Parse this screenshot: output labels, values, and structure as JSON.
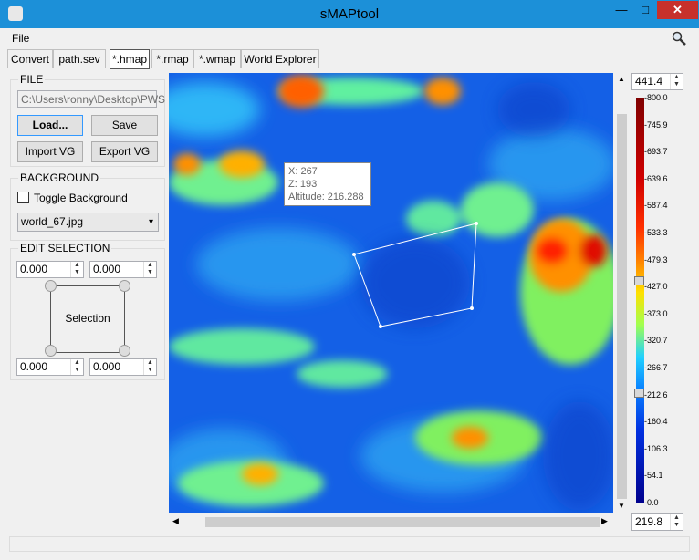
{
  "window": {
    "title": "sMAPtool",
    "minimize_glyph": "—",
    "maximize_glyph": "□",
    "close_glyph": "✕"
  },
  "menu": {
    "file": "File"
  },
  "tabs": [
    "Convert",
    "path.sev",
    "*.hmap",
    "*.rmap",
    "*.wmap",
    "World Explorer"
  ],
  "active_tab": "*.hmap",
  "file_group": {
    "title": "FILE",
    "path_value": "C:\\Users\\ronny\\Desktop\\PWS",
    "load_label": "Load...",
    "save_label": "Save",
    "import_label": "Import VG",
    "export_label": "Export VG"
  },
  "background_group": {
    "title": "BACKGROUND",
    "toggle_label": "Toggle Background",
    "toggle_checked": false,
    "image_select": "world_67.jpg"
  },
  "edit_selection": {
    "title": "EDIT SELECTION",
    "top_left": "0.000",
    "top_right": "0.000",
    "bottom_left": "0.000",
    "bottom_right": "0.000",
    "selection_label": "Selection"
  },
  "tooltip": {
    "x": "X: 267",
    "z": "Z: 193",
    "altitude": "Altitude: 216.288"
  },
  "colorbar": {
    "max_value": "441.4",
    "min_value": "219.8",
    "ticks": [
      "-800.0",
      "-745.9",
      "-693.7",
      "-639.6",
      "-587.4",
      "-533.3",
      "-479.3",
      "-427.0",
      "-373.0",
      "-320.7",
      "-266.7",
      "-212.6",
      "-160.4",
      "-106.3",
      "-54.1",
      "-0.0"
    ]
  }
}
